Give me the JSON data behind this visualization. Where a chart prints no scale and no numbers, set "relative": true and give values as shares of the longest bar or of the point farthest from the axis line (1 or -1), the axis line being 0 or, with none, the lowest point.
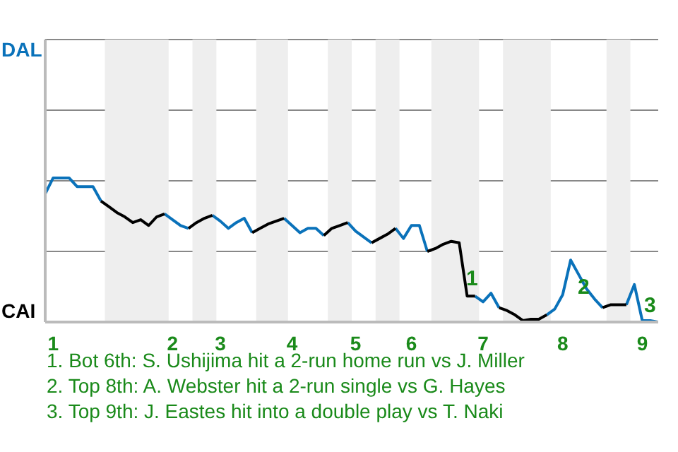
{
  "chart_data": {
    "type": "line",
    "relative": true,
    "categories": [
      null,
      "1",
      null,
      null,
      null,
      null,
      null,
      null,
      null,
      null,
      null,
      null,
      null,
      null,
      null,
      null,
      "2",
      null,
      null,
      null,
      null,
      null,
      "3",
      null,
      null,
      null,
      null,
      null,
      null,
      null,
      null,
      "4",
      null,
      null,
      null,
      null,
      null,
      null,
      null,
      "5",
      null,
      null,
      null,
      null,
      null,
      null,
      "6",
      null,
      null,
      null,
      null,
      null,
      null,
      null,
      null,
      "7",
      null,
      null,
      null,
      null,
      null,
      null,
      null,
      null,
      null,
      "8",
      null,
      null,
      null,
      null,
      null,
      null,
      null,
      null,
      null,
      "9",
      null,
      null
    ],
    "series": [
      {
        "color": "#0a72ba",
        "values": [
          0.89,
          1,
          1,
          1,
          0.94,
          0.94,
          0.94,
          0.84,
          null,
          null,
          null,
          null,
          null,
          null,
          null,
          0.75,
          0.71,
          0.67,
          0.65,
          null,
          null,
          0.74,
          0.7,
          0.65,
          0.69,
          0.72,
          0.62,
          null,
          null,
          null,
          0.72,
          0.67,
          0.62,
          0.65,
          0.65,
          0.6,
          null,
          null,
          0.69,
          0.63,
          0.59,
          0.55,
          null,
          null,
          0.65,
          0.58,
          0.67,
          0.67,
          0.49,
          null,
          null,
          null,
          null,
          null,
          0.18,
          0.14,
          0.2,
          0.1,
          null,
          null,
          null,
          null,
          null,
          0.05,
          0.09,
          0.19,
          0.43,
          0.33,
          0.23,
          0.16,
          0.1,
          null,
          null,
          0.12,
          0.26,
          0.01,
          0.01,
          0
        ]
      },
      {
        "color": "#000000",
        "values": [
          null,
          null,
          null,
          null,
          null,
          null,
          null,
          0.84,
          0.8,
          0.76,
          0.73,
          0.69,
          0.71,
          0.67,
          0.73,
          0.75,
          null,
          null,
          0.65,
          0.69,
          0.72,
          0.74,
          null,
          null,
          null,
          null,
          0.62,
          0.65,
          0.68,
          0.7,
          0.72,
          null,
          null,
          null,
          null,
          0.6,
          0.65,
          0.67,
          0.69,
          null,
          null,
          0.55,
          0.58,
          0.61,
          0.65,
          null,
          null,
          null,
          0.49,
          0.51,
          0.54,
          0.56,
          0.55,
          0.18,
          0.18,
          null,
          null,
          0.1,
          0.08,
          0.05,
          0.01,
          0.02,
          0.02,
          0.05,
          null,
          null,
          null,
          null,
          null,
          null,
          0.1,
          0.12,
          0.12,
          0.12,
          null,
          null,
          null,
          null
        ]
      }
    ],
    "ylim": [
      0,
      1.96
    ],
    "grid": "y",
    "annotations": [
      "1",
      "2",
      "3",
      "DAL",
      "CAI",
      "1. Bot 6th: S. Ushijima hit a 2-run home run vs J. Miller",
      "2. Top 8th: A. Webster hit a 2-run single vs G. Hayes",
      "3. Top 9th: J. Eastes hit into a double play vs T. Naki"
    ]
  }
}
